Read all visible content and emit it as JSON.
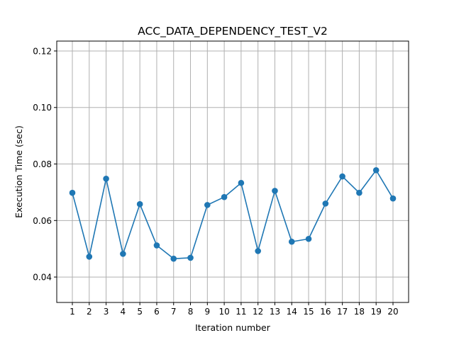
{
  "chart_data": {
    "type": "line",
    "title": "ACC_DATA_DEPENDENCY_TEST_V2",
    "xlabel": "Iteration number",
    "ylabel": "Execution Time (sec)",
    "x": [
      1,
      2,
      3,
      4,
      5,
      6,
      7,
      8,
      9,
      10,
      11,
      12,
      13,
      14,
      15,
      16,
      17,
      18,
      19,
      20
    ],
    "x_tick_labels": [
      "1",
      "2",
      "3",
      "4",
      "5",
      "6",
      "7",
      "8",
      "9",
      "10",
      "11",
      "12",
      "13",
      "14",
      "15",
      "16",
      "17",
      "18",
      "19",
      "20"
    ],
    "series": [
      {
        "values": [
          0.0698,
          0.0472,
          0.0748,
          0.0482,
          0.0658,
          0.0512,
          0.0465,
          0.0468,
          0.0655,
          0.0683,
          0.0733,
          0.0492,
          0.0705,
          0.0525,
          0.0535,
          0.066,
          0.0756,
          0.0698,
          0.0778,
          0.0678
        ],
        "color": "#1f77b4",
        "marker": "circle"
      }
    ],
    "xlim": [
      0.075,
      20.925
    ],
    "ylim": [
      0.031,
      0.1235
    ],
    "y_ticks": [
      0.04,
      0.06,
      0.08,
      0.1,
      0.12
    ],
    "y_tick_labels": [
      "0.04",
      "0.06",
      "0.08",
      "0.10",
      "0.12"
    ],
    "grid": true,
    "legend": false
  }
}
